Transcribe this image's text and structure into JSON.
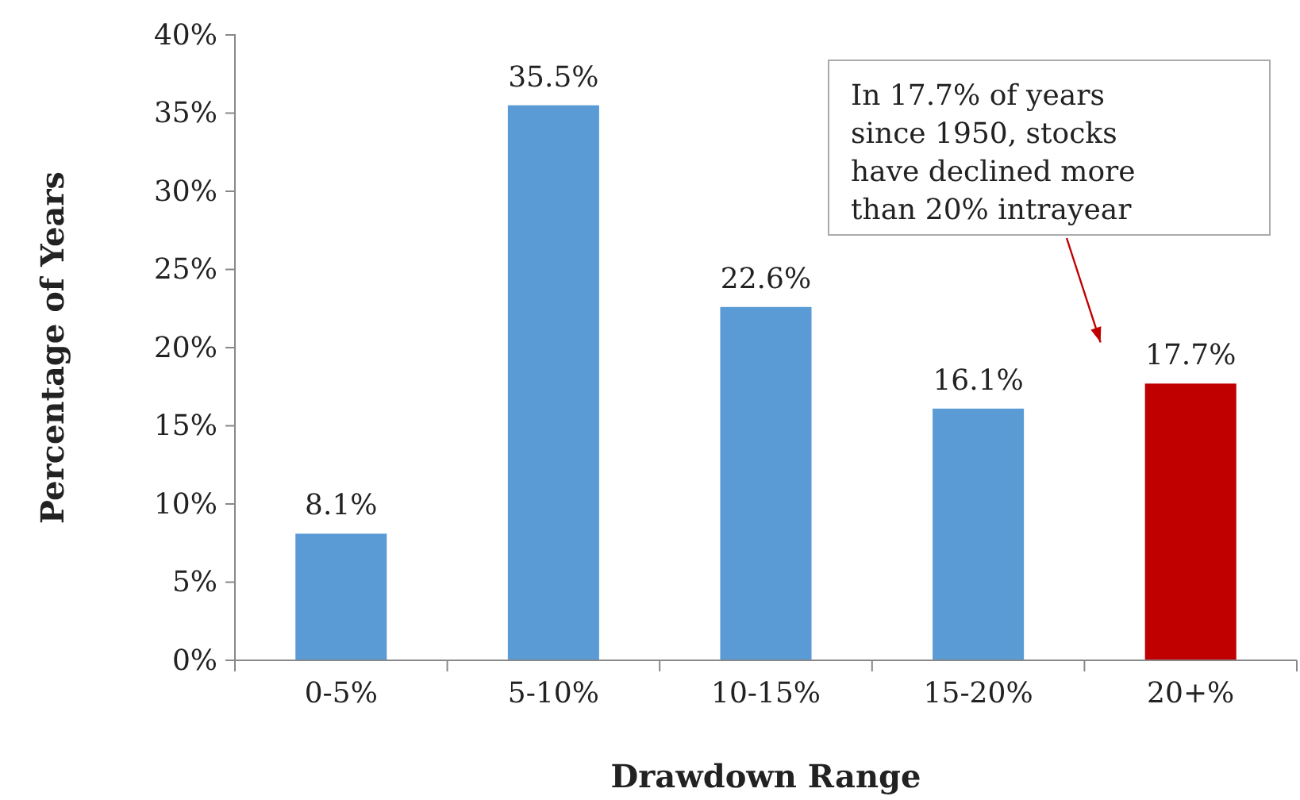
{
  "chart_data": {
    "type": "bar",
    "xlabel": "Drawdown Range",
    "ylabel": "Percentage of Years",
    "categories": [
      "0-5%",
      "5-10%",
      "10-15%",
      "15-20%",
      "20+%"
    ],
    "values": [
      8.1,
      35.5,
      22.6,
      16.1,
      17.7
    ],
    "colors": [
      "#5b9bd5",
      "#5b9bd5",
      "#5b9bd5",
      "#5b9bd5",
      "#c00000"
    ],
    "value_labels": [
      "8.1%",
      "35.5%",
      "22.6%",
      "16.1%",
      "17.7%"
    ],
    "ylim": [
      0,
      40
    ],
    "yticks": [
      {
        "value": 0,
        "label": "0%"
      },
      {
        "value": 5,
        "label": "5%"
      },
      {
        "value": 10,
        "label": "10%"
      },
      {
        "value": 15,
        "label": "15%"
      },
      {
        "value": 20,
        "label": "20%"
      },
      {
        "value": 25,
        "label": "25%"
      },
      {
        "value": 30,
        "label": "30%"
      },
      {
        "value": 35,
        "label": "35%"
      },
      {
        "value": 40,
        "label": "40%"
      }
    ],
    "annotations": [
      "In 17.7% of years since 1950, stocks have declined more than 20% intrayear"
    ],
    "grid": false
  }
}
